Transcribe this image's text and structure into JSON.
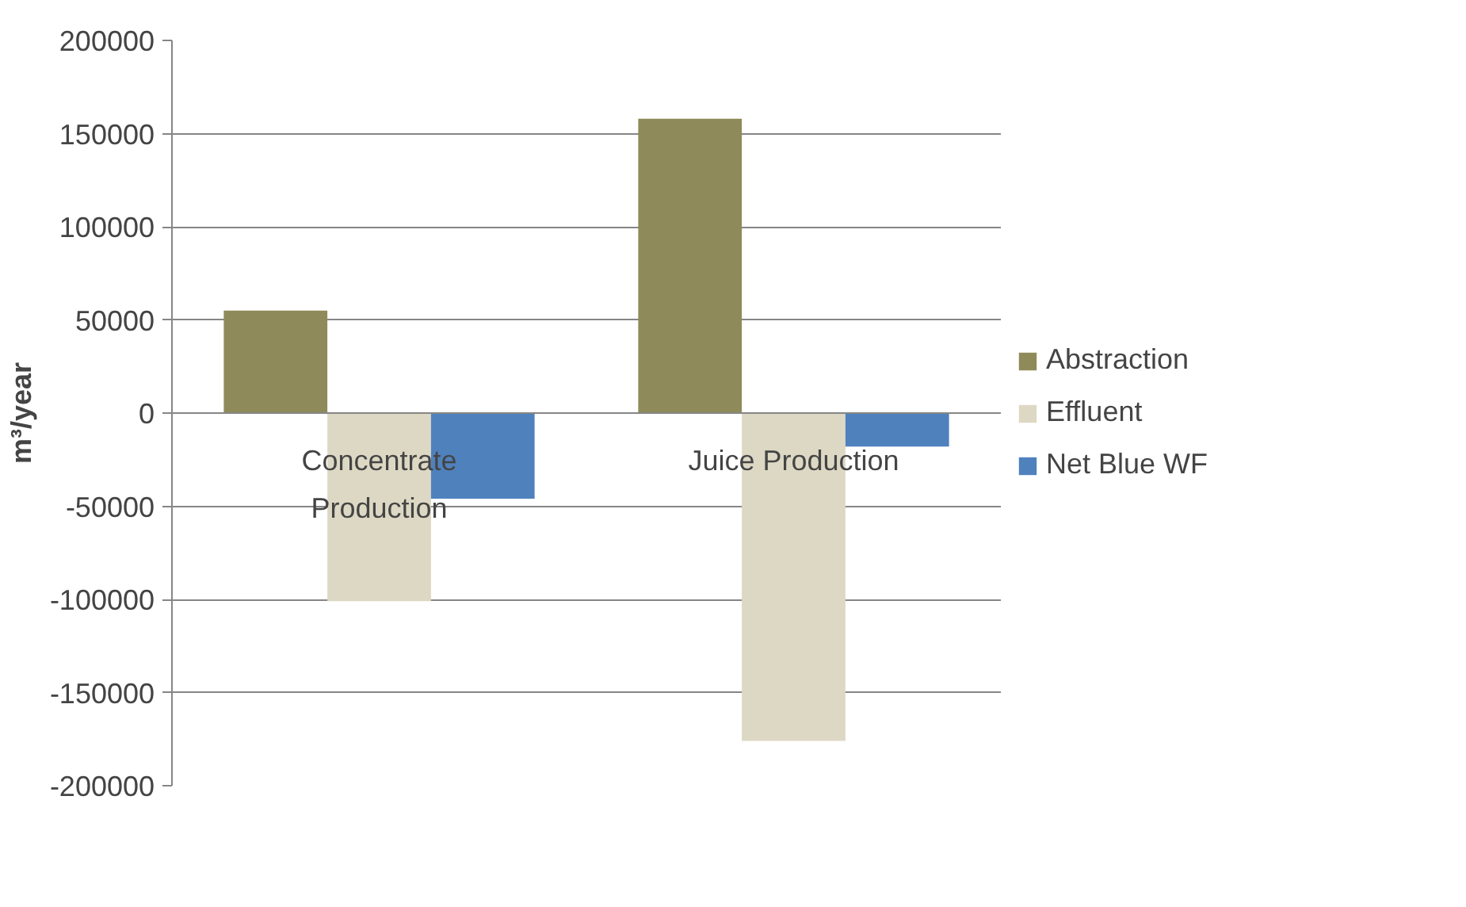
{
  "chart_data": {
    "type": "bar",
    "ylabel": "m³/year",
    "categories": [
      "Concentrate Production",
      "Juice Production"
    ],
    "series": [
      {
        "name": "Abstraction",
        "color": "#8f8a5a",
        "values": [
          55000,
          158000
        ]
      },
      {
        "name": "Effluent",
        "color": "#ddd8c4",
        "values": [
          -101000,
          -176000
        ]
      },
      {
        "name": "Net Blue WF",
        "color": "#4f81bd",
        "values": [
          -46000,
          -18000
        ]
      }
    ],
    "ylim": [
      -200000,
      200000
    ],
    "yticks": [
      -200000,
      -150000,
      -100000,
      -50000,
      0,
      50000,
      100000,
      150000,
      200000
    ],
    "grid": "y",
    "legend": "right"
  }
}
